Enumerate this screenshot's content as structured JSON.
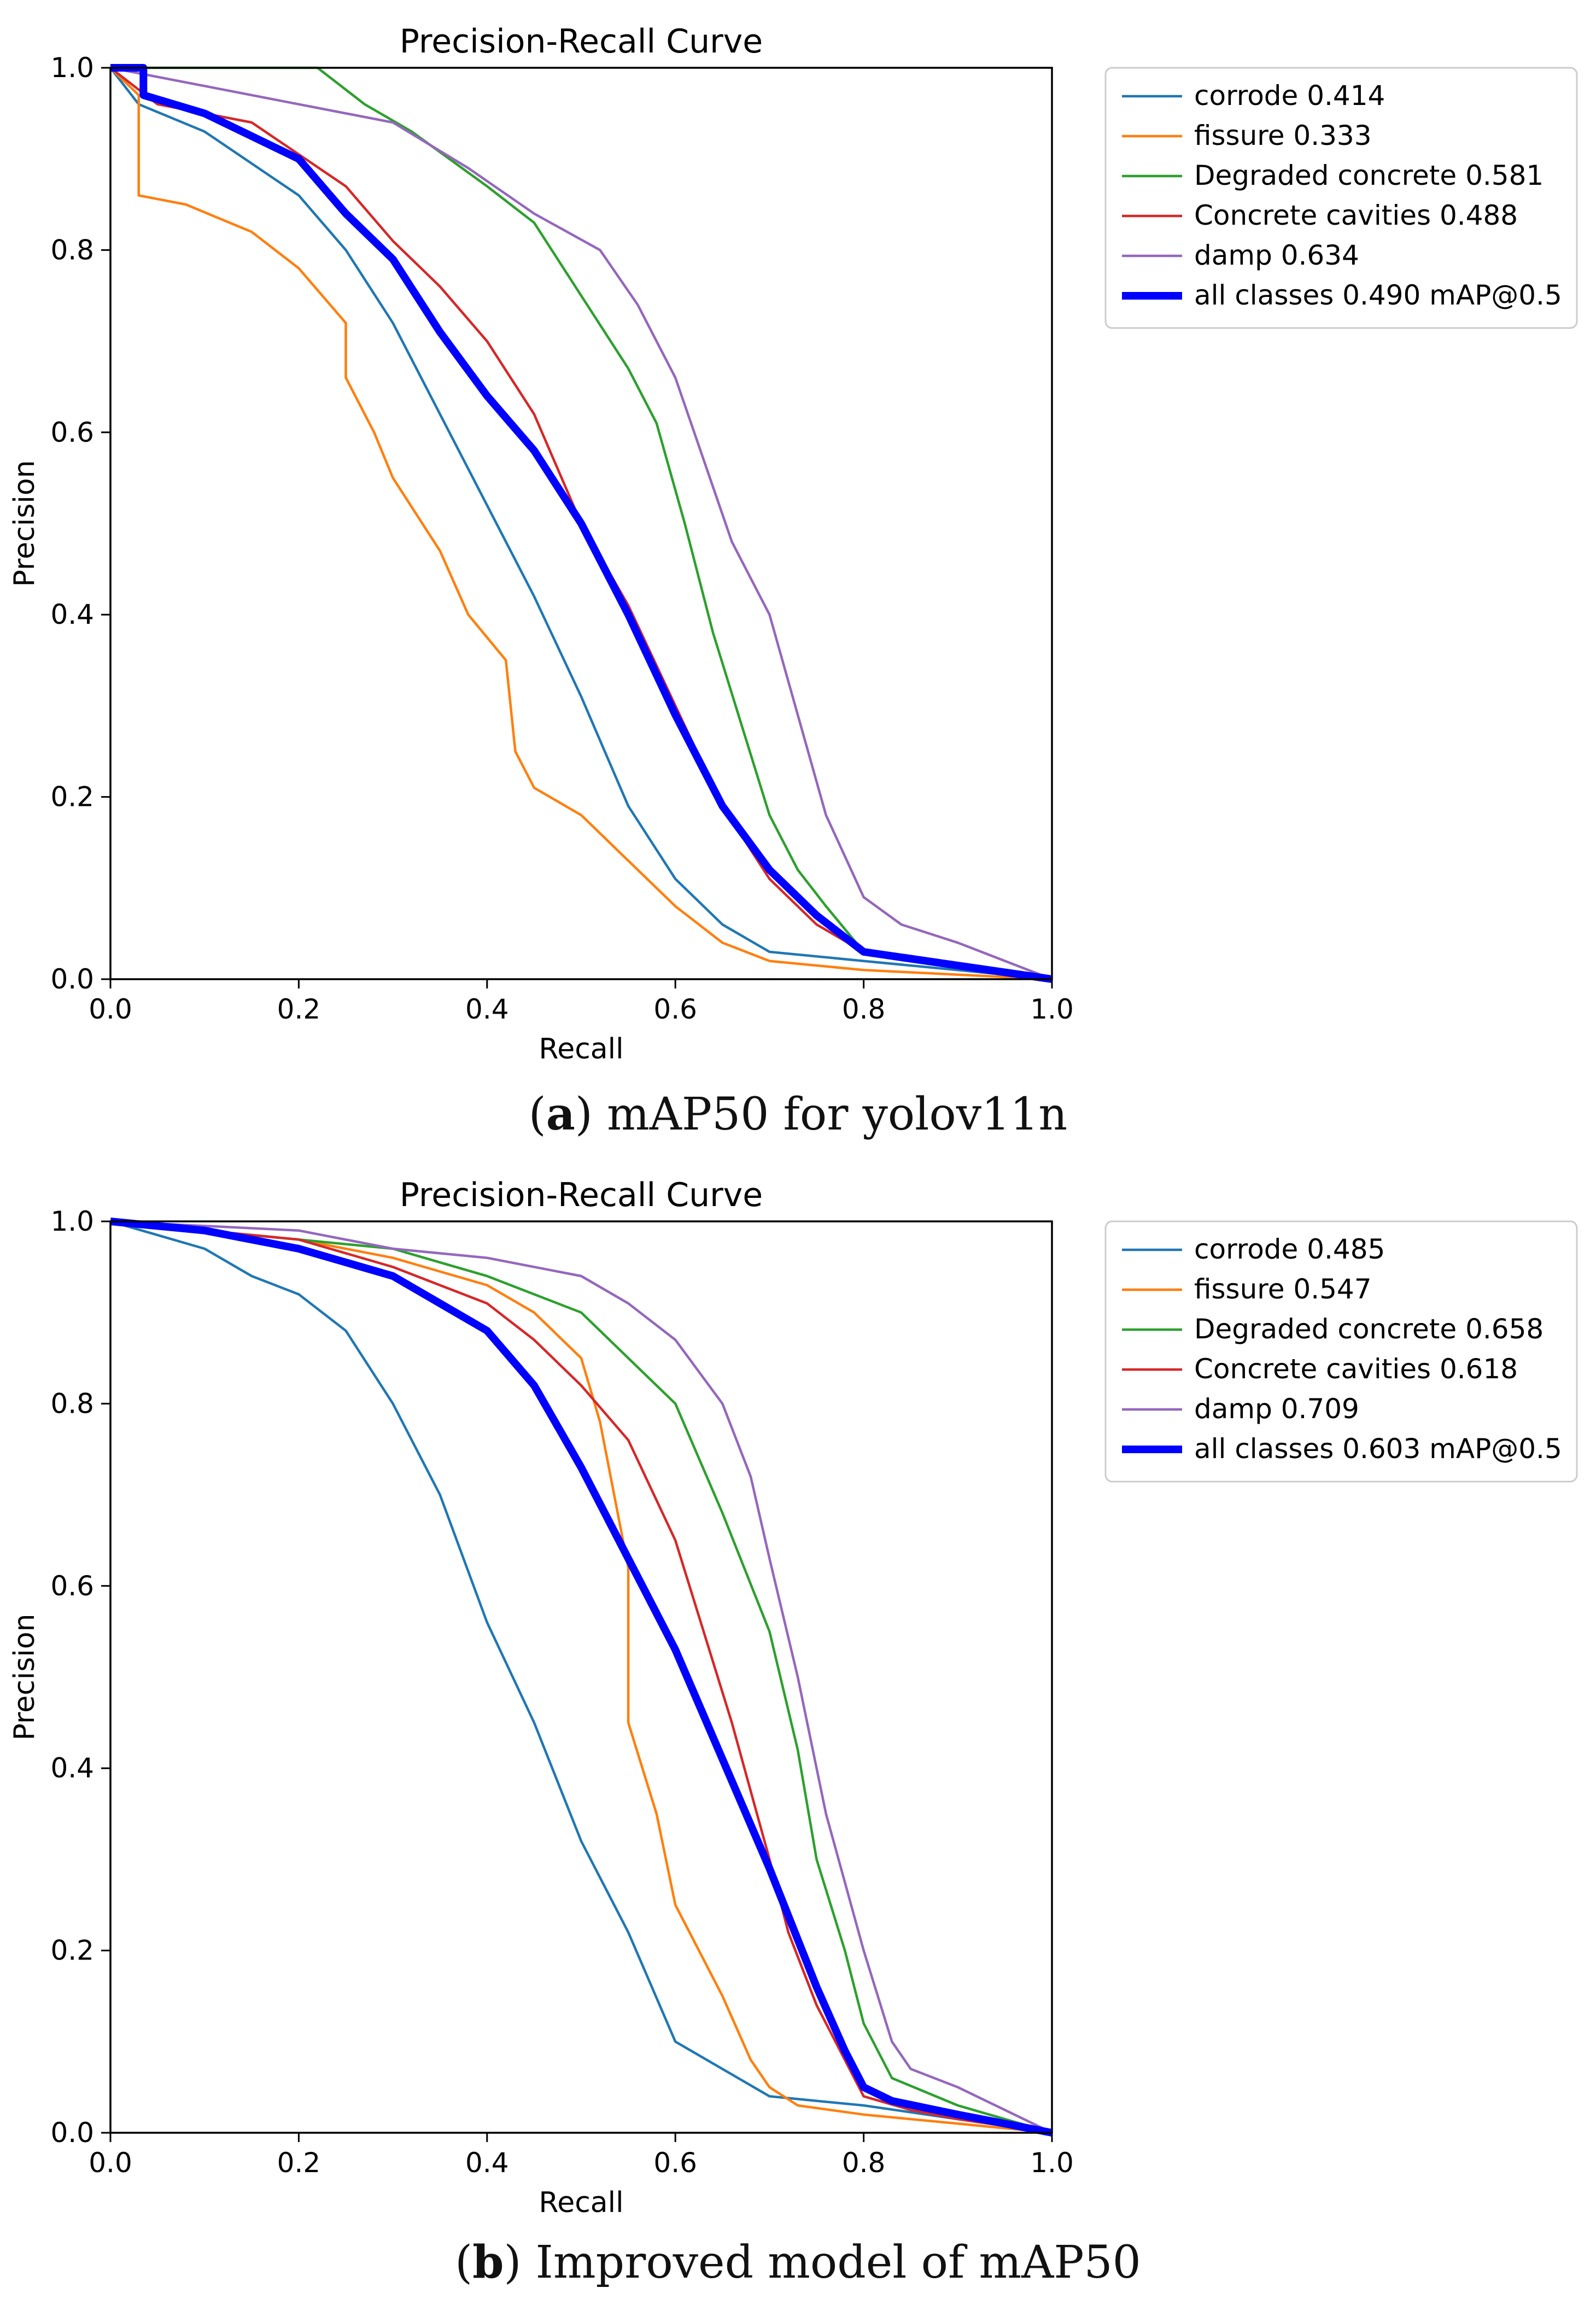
{
  "chart_data": [
    {
      "type": "line",
      "title": "Precision-Recall Curve",
      "xlabel": "Recall",
      "ylabel": "Precision",
      "xlim": [
        0.0,
        1.0
      ],
      "ylim": [
        0.0,
        1.0
      ],
      "xticks": [
        "0.0",
        "0.2",
        "0.4",
        "0.6",
        "0.8",
        "1.0"
      ],
      "yticks": [
        "0.0",
        "0.2",
        "0.4",
        "0.6",
        "0.8",
        "1.0"
      ],
      "grid": false,
      "legend": "outside-right",
      "caption": {
        "letter": "a",
        "text": "mAP50 for yolov11n"
      },
      "series": [
        {
          "name": "corrode",
          "score": "0.414",
          "color": "#1f77b4",
          "x": [
            0.0,
            0.03,
            0.1,
            0.2,
            0.25,
            0.3,
            0.35,
            0.4,
            0.45,
            0.5,
            0.55,
            0.6,
            0.65,
            0.7,
            0.8,
            0.9,
            1.0
          ],
          "y": [
            1.0,
            0.96,
            0.93,
            0.86,
            0.8,
            0.72,
            0.62,
            0.52,
            0.42,
            0.31,
            0.19,
            0.11,
            0.06,
            0.03,
            0.02,
            0.01,
            0.0
          ]
        },
        {
          "name": "fissure",
          "score": "0.333",
          "color": "#ff7f0e",
          "x": [
            0.0,
            0.03,
            0.03,
            0.08,
            0.15,
            0.2,
            0.25,
            0.25,
            0.28,
            0.3,
            0.35,
            0.38,
            0.42,
            0.43,
            0.45,
            0.5,
            0.55,
            0.6,
            0.65,
            0.7,
            0.8,
            0.9,
            1.0
          ],
          "y": [
            1.0,
            0.97,
            0.86,
            0.85,
            0.82,
            0.78,
            0.72,
            0.66,
            0.6,
            0.55,
            0.47,
            0.4,
            0.35,
            0.25,
            0.21,
            0.18,
            0.13,
            0.08,
            0.04,
            0.02,
            0.01,
            0.005,
            0.0
          ]
        },
        {
          "name": "Degraded concrete",
          "score": "0.581",
          "color": "#2ca02c",
          "x": [
            0.0,
            0.22,
            0.27,
            0.32,
            0.4,
            0.45,
            0.5,
            0.55,
            0.58,
            0.61,
            0.64,
            0.67,
            0.7,
            0.73,
            0.76,
            0.8,
            0.9,
            1.0
          ],
          "y": [
            1.0,
            1.0,
            0.96,
            0.93,
            0.87,
            0.83,
            0.75,
            0.67,
            0.61,
            0.5,
            0.38,
            0.28,
            0.18,
            0.12,
            0.08,
            0.03,
            0.015,
            0.0
          ]
        },
        {
          "name": "Concrete cavities",
          "score": "0.488",
          "color": "#d62728",
          "x": [
            0.0,
            0.05,
            0.15,
            0.25,
            0.3,
            0.35,
            0.4,
            0.45,
            0.5,
            0.55,
            0.6,
            0.65,
            0.7,
            0.75,
            0.8,
            0.9,
            1.0
          ],
          "y": [
            1.0,
            0.96,
            0.94,
            0.87,
            0.81,
            0.76,
            0.7,
            0.62,
            0.5,
            0.41,
            0.3,
            0.19,
            0.11,
            0.06,
            0.03,
            0.015,
            0.0
          ]
        },
        {
          "name": "damp",
          "score": "0.634",
          "color": "#9467bd",
          "x": [
            0.0,
            0.1,
            0.2,
            0.3,
            0.38,
            0.45,
            0.52,
            0.56,
            0.6,
            0.63,
            0.66,
            0.7,
            0.73,
            0.76,
            0.8,
            0.84,
            0.9,
            1.0
          ],
          "y": [
            1.0,
            0.98,
            0.96,
            0.94,
            0.89,
            0.84,
            0.8,
            0.74,
            0.66,
            0.57,
            0.48,
            0.4,
            0.29,
            0.18,
            0.09,
            0.06,
            0.04,
            0.0
          ]
        },
        {
          "name": "all classes",
          "score": "0.490 mAP@0.5",
          "color": "#0000ff",
          "bold": true,
          "x": [
            0.0,
            0.035,
            0.035,
            0.1,
            0.2,
            0.25,
            0.3,
            0.35,
            0.4,
            0.45,
            0.5,
            0.55,
            0.6,
            0.65,
            0.7,
            0.75,
            0.8,
            0.9,
            1.0
          ],
          "y": [
            1.0,
            1.0,
            0.97,
            0.95,
            0.9,
            0.84,
            0.79,
            0.71,
            0.64,
            0.58,
            0.5,
            0.4,
            0.29,
            0.19,
            0.12,
            0.07,
            0.03,
            0.015,
            0.0
          ]
        }
      ]
    },
    {
      "type": "line",
      "title": "Precision-Recall Curve",
      "xlabel": "Recall",
      "ylabel": "Precision",
      "xlim": [
        0.0,
        1.0
      ],
      "ylim": [
        0.0,
        1.0
      ],
      "xticks": [
        "0.0",
        "0.2",
        "0.4",
        "0.6",
        "0.8",
        "1.0"
      ],
      "yticks": [
        "0.0",
        "0.2",
        "0.4",
        "0.6",
        "0.8",
        "1.0"
      ],
      "grid": false,
      "legend": "outside-right",
      "caption": {
        "letter": "b",
        "text": "Improved model of mAP50"
      },
      "series": [
        {
          "name": "corrode",
          "score": "0.485",
          "color": "#1f77b4",
          "x": [
            0.0,
            0.1,
            0.15,
            0.2,
            0.25,
            0.3,
            0.35,
            0.4,
            0.45,
            0.5,
            0.55,
            0.6,
            0.65,
            0.7,
            0.8,
            0.9,
            1.0
          ],
          "y": [
            1.0,
            0.97,
            0.94,
            0.92,
            0.88,
            0.8,
            0.7,
            0.56,
            0.45,
            0.32,
            0.22,
            0.1,
            0.07,
            0.04,
            0.03,
            0.015,
            0.0
          ]
        },
        {
          "name": "fissure",
          "score": "0.547",
          "color": "#ff7f0e",
          "x": [
            0.0,
            0.1,
            0.2,
            0.3,
            0.4,
            0.45,
            0.5,
            0.52,
            0.55,
            0.55,
            0.58,
            0.6,
            0.65,
            0.68,
            0.7,
            0.73,
            0.8,
            0.9,
            1.0
          ],
          "y": [
            1.0,
            0.99,
            0.98,
            0.96,
            0.93,
            0.9,
            0.85,
            0.78,
            0.62,
            0.45,
            0.35,
            0.25,
            0.15,
            0.08,
            0.05,
            0.03,
            0.02,
            0.01,
            0.0
          ]
        },
        {
          "name": "Degraded concrete",
          "score": "0.658",
          "color": "#2ca02c",
          "x": [
            0.0,
            0.1,
            0.2,
            0.3,
            0.4,
            0.5,
            0.55,
            0.6,
            0.65,
            0.7,
            0.73,
            0.75,
            0.78,
            0.8,
            0.83,
            0.9,
            1.0
          ],
          "y": [
            1.0,
            0.99,
            0.98,
            0.97,
            0.94,
            0.9,
            0.85,
            0.8,
            0.68,
            0.55,
            0.42,
            0.3,
            0.2,
            0.12,
            0.06,
            0.03,
            0.0
          ]
        },
        {
          "name": "Concrete cavities",
          "score": "0.618",
          "color": "#d62728",
          "x": [
            0.0,
            0.1,
            0.2,
            0.3,
            0.4,
            0.45,
            0.5,
            0.55,
            0.6,
            0.63,
            0.66,
            0.7,
            0.72,
            0.75,
            0.78,
            0.8,
            0.85,
            0.9,
            1.0
          ],
          "y": [
            1.0,
            0.99,
            0.98,
            0.95,
            0.91,
            0.87,
            0.82,
            0.76,
            0.65,
            0.55,
            0.45,
            0.3,
            0.22,
            0.14,
            0.08,
            0.04,
            0.025,
            0.015,
            0.0
          ]
        },
        {
          "name": "damp",
          "score": "0.709",
          "color": "#9467bd",
          "x": [
            0.0,
            0.2,
            0.3,
            0.4,
            0.5,
            0.55,
            0.6,
            0.65,
            0.68,
            0.7,
            0.73,
            0.76,
            0.8,
            0.83,
            0.85,
            0.9,
            1.0
          ],
          "y": [
            1.0,
            0.99,
            0.97,
            0.96,
            0.94,
            0.91,
            0.87,
            0.8,
            0.72,
            0.63,
            0.5,
            0.35,
            0.2,
            0.1,
            0.07,
            0.05,
            0.0
          ]
        },
        {
          "name": "all classes",
          "score": "0.603 mAP@0.5",
          "color": "#0000ff",
          "bold": true,
          "x": [
            0.0,
            0.1,
            0.2,
            0.3,
            0.4,
            0.45,
            0.5,
            0.55,
            0.6,
            0.65,
            0.7,
            0.75,
            0.78,
            0.8,
            0.83,
            0.9,
            1.0
          ],
          "y": [
            1.0,
            0.99,
            0.97,
            0.94,
            0.88,
            0.82,
            0.73,
            0.63,
            0.53,
            0.41,
            0.29,
            0.16,
            0.09,
            0.05,
            0.035,
            0.02,
            0.0
          ]
        }
      ]
    }
  ]
}
